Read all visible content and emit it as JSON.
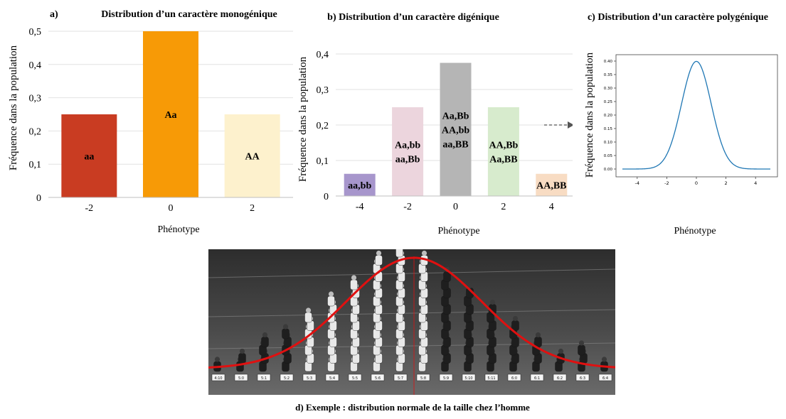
{
  "chart_data": [
    {
      "type": "bar",
      "panel_letter": "a)",
      "title": "Distribution d’un caractère monogénique",
      "xlabel": "Phénotype",
      "ylabel": "Fréquence dans la population",
      "ylim": [
        0,
        0.5
      ],
      "yticks": [
        "0",
        "0,1",
        "0,2",
        "0,3",
        "0,4",
        "0,5"
      ],
      "categories": [
        "-2",
        "0",
        "2"
      ],
      "values": [
        0.25,
        0.5,
        0.25
      ],
      "bar_labels": [
        [
          "aa"
        ],
        [
          "Aa"
        ],
        [
          "AA"
        ]
      ],
      "colors": [
        "#c93c22",
        "#f79a06",
        "#fdf1cd"
      ]
    },
    {
      "type": "bar",
      "title": "b) Distribution d’un caractère digénique",
      "xlabel": "Phénotype",
      "ylabel": "Fréquence dans la population",
      "ylim": [
        0,
        0.4
      ],
      "yticks": [
        "0",
        "0,1",
        "0,2",
        "0,3",
        "0,4"
      ],
      "categories": [
        "-4",
        "-2",
        "0",
        "2",
        "4"
      ],
      "values": [
        0.0625,
        0.25,
        0.375,
        0.25,
        0.0625
      ],
      "bar_labels": [
        [
          "aa,bb"
        ],
        [
          "Aa,bb",
          "aa,Bb"
        ],
        [
          "Aa,Bb",
          "AA,bb",
          "aa,BB"
        ],
        [
          "AA,Bb",
          "Aa,BB"
        ],
        [
          "AA,BB"
        ]
      ],
      "colors": [
        "#a796cc",
        "#ecd5dd",
        "#b5b5b5",
        "#d7ebcd",
        "#f8dcc3"
      ]
    },
    {
      "type": "line",
      "title": "c) Distribution d’un caractère polygénique",
      "xlabel": "Phénotype",
      "ylabel": "Fréquence dans la population",
      "xlim": [
        -5,
        5
      ],
      "ylim": [
        0,
        0.4
      ],
      "xticks": [
        "-4",
        "-2",
        "0",
        "2",
        "4"
      ],
      "yticks": [
        "0.00",
        "0.05",
        "0.10",
        "0.15",
        "0.20",
        "0.25",
        "0.30",
        "0.35",
        "0.40"
      ],
      "curve": "normal",
      "mean": 0,
      "sd": 1,
      "color": "#1f77b4"
    }
  ],
  "photo": {
    "caption": "d) Exemple : distribution normale de la taille chez l’homme",
    "height_labels": [
      "4:10",
      "5:0",
      "5:1",
      "5:2",
      "5:3",
      "5:4",
      "5:5",
      "5:6",
      "5:7",
      "5:8",
      "5:9",
      "5:10",
      "5:11",
      "6:0",
      "6:1",
      "6:2",
      "6:3",
      "6:4"
    ],
    "counts": [
      1,
      2,
      4,
      5,
      7,
      9,
      11,
      14,
      17,
      14,
      12,
      10,
      8,
      6,
      4,
      2,
      3,
      1
    ],
    "curve_color": "#e01010"
  }
}
